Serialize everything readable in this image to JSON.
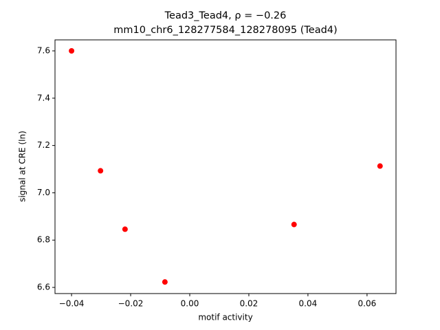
{
  "chart_data": {
    "type": "scatter",
    "title": [
      "Tead3_Tead4, ρ = −0.26",
      "mm10_chr6_128277584_128278095 (Tead4)"
    ],
    "x_label": "motif activity",
    "y_label": "signal at CRE (ln)",
    "color": "#ff0000",
    "x": [
      -0.04,
      -0.0302,
      -0.0219,
      -0.0084,
      0.0353,
      0.0644
    ],
    "values": [
      7.6,
      7.093,
      6.846,
      6.623,
      6.866,
      7.113
    ],
    "xlim": [
      -0.0456,
      0.0698
    ],
    "ylim": [
      6.574,
      7.6465
    ],
    "xticks": [
      {
        "value": -0.04,
        "label": "−0.04"
      },
      {
        "value": -0.02,
        "label": "−0.02"
      },
      {
        "value": 0,
        "label": "0.00"
      },
      {
        "value": 0.02,
        "label": "0.02"
      },
      {
        "value": 0.04,
        "label": "0.04"
      },
      {
        "value": 0.06,
        "label": "0.06"
      }
    ],
    "yticks": [
      6.6,
      6.8,
      {
        "value": 7,
        "label": "7.0"
      },
      7.2,
      7.4,
      7.6
    ],
    "grid": false
  }
}
